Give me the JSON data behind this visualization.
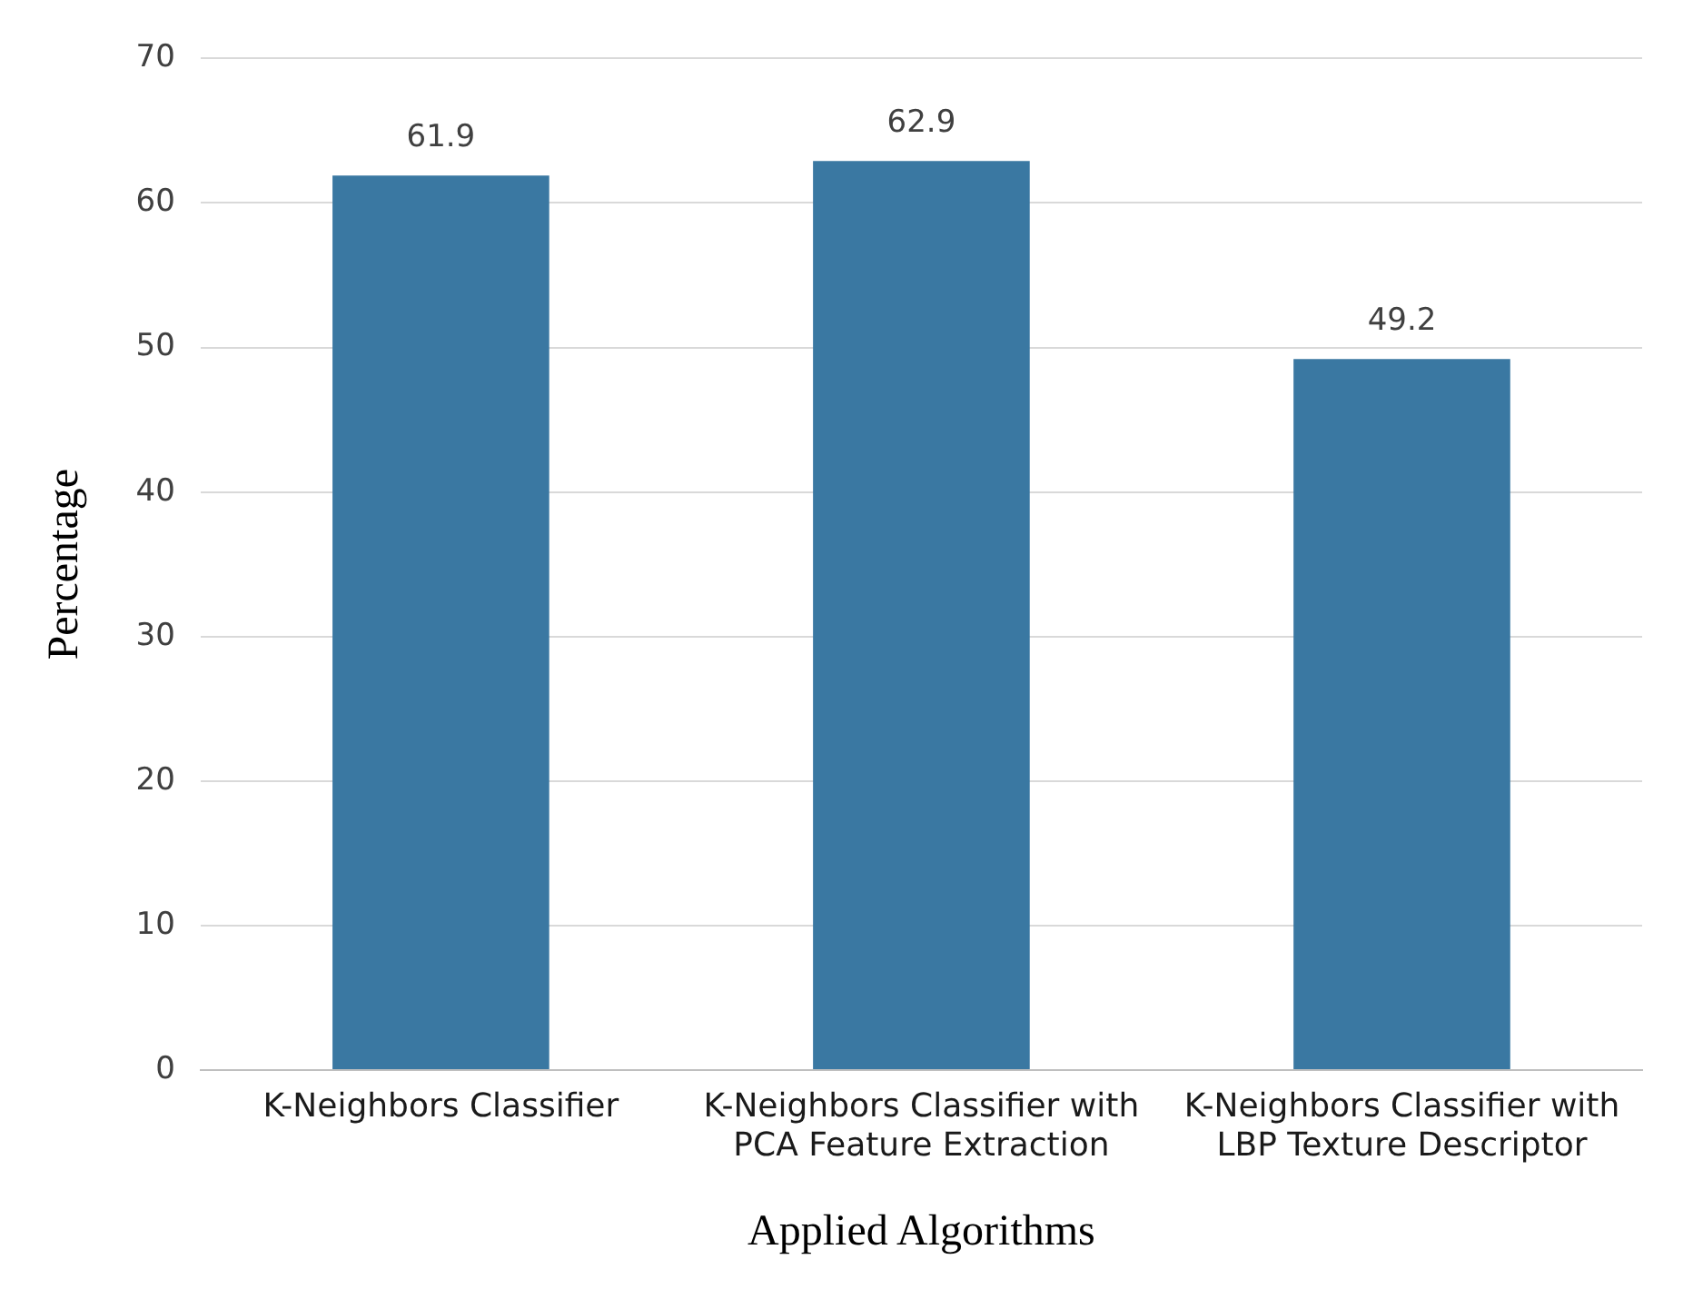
{
  "chart_data": {
    "type": "bar",
    "xlabel": "Applied Algorithms",
    "ylabel": "Percentage",
    "categories": [
      "K-Neighbors Classifier",
      "K-Neighbors Classifier with PCA Feature Extraction",
      "K-Neighbors Classifier with LBP Texture Descriptor"
    ],
    "values": [
      61.9,
      62.9,
      49.2
    ],
    "color": "#3a78a2",
    "ylim": [
      0,
      70
    ],
    "yticks": [
      0,
      10,
      20,
      30,
      40,
      50,
      60,
      70
    ],
    "grid": "y",
    "data_labels": true,
    "legend": false
  }
}
